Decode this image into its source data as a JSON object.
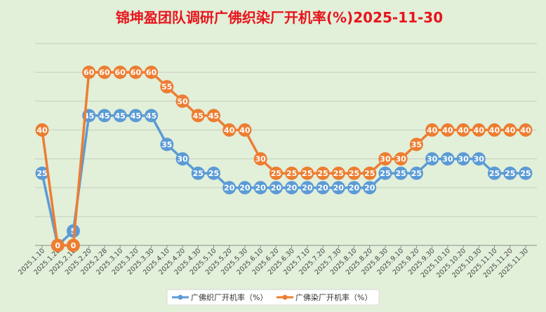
{
  "chart_data": {
    "type": "line",
    "title": "锦坤盈团队调研广佛织染厂开机率(%)2025-11-30",
    "categories": [
      "2025.1.10",
      "2025.1.20",
      "2025.2.10",
      "2025.2.20",
      "2025.2.28",
      "2025.3.10",
      "2025.3.20",
      "2025.3.30",
      "2025.4.10",
      "2025.4.20",
      "2025.4.30",
      "2025.5.10",
      "2025.5.20",
      "2025.5.30",
      "2025.6.10",
      "2025.6.20",
      "2025.6.30",
      "2025.7.10",
      "2025.7.20",
      "2025.7.30",
      "2025.8.10",
      "2025.8.20",
      "2025.8.30",
      "2025.9.10",
      "2025.9.20",
      "2025.9.30",
      "2025.10.10",
      "2025.10.20",
      "2025.10.30",
      "2025.11.10",
      "2025.11.20",
      "2025.11.30"
    ],
    "series": [
      {
        "name": "广佛织厂开机率（%）",
        "color": "#5b9bd5",
        "values": [
          25,
          0,
          5,
          45,
          45,
          45,
          45,
          45,
          35,
          30,
          25,
          25,
          20,
          20,
          20,
          20,
          20,
          20,
          20,
          20,
          20,
          20,
          25,
          25,
          25,
          30,
          30,
          30,
          30,
          25,
          25,
          25
        ]
      },
      {
        "name": "广佛染厂开机率（%）",
        "color": "#ed7d31",
        "values": [
          40,
          0,
          0,
          60,
          60,
          60,
          60,
          60,
          55,
          50,
          45,
          45,
          40,
          40,
          30,
          25,
          25,
          25,
          25,
          25,
          25,
          25,
          30,
          30,
          35,
          40,
          40,
          40,
          40,
          40,
          40,
          40
        ]
      }
    ],
    "ylim": [
      0,
      70
    ],
    "grid": true,
    "legend": "bottom-center",
    "title_color": "#e8141c"
  }
}
